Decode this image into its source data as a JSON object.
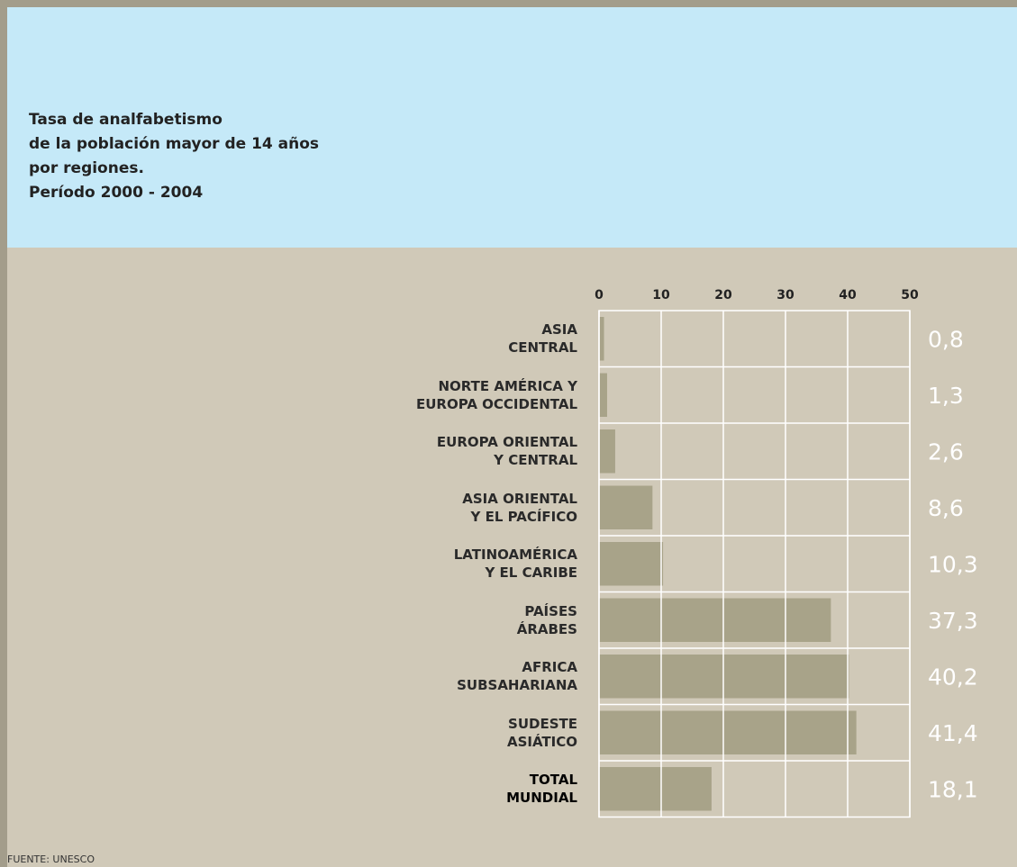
{
  "chart_data": {
    "type": "hbar",
    "title": "Tasa de analfabetismo\nde la población mayor de 14 años\npor regiones.\nPeríodo 2000 - 2004",
    "source": "FUENTE: UNESCO",
    "categories": [
      "ASIA\nCENTRAL",
      "NORTE AMÉRICA Y\nEUROPA OCCIDENTAL",
      "EUROPA ORIENTAL\nY CENTRAL",
      "ASIA ORIENTAL\nY EL PACÍFICO",
      "LATINOAMÉRICA\nY EL CARIBE",
      "PAÍSES\nÁRABES",
      "AFRICA\nSUBSAHARIANA",
      "SUDESTE\nASIÁTICO",
      "TOTAL\nMUNDIAL"
    ],
    "values": [
      0.8,
      1.3,
      2.6,
      8.6,
      10.3,
      37.3,
      40.2,
      41.4,
      18.1
    ],
    "value_labels": [
      "0,8",
      "1,3",
      "2,6",
      "8,6",
      "10,3",
      "37,3",
      "40,2",
      "41,4",
      "18,1"
    ],
    "color": "#a8a389",
    "xlim": [
      0,
      50
    ],
    "xticks": [
      0,
      10,
      20,
      30,
      40,
      50
    ],
    "grid": true
  }
}
